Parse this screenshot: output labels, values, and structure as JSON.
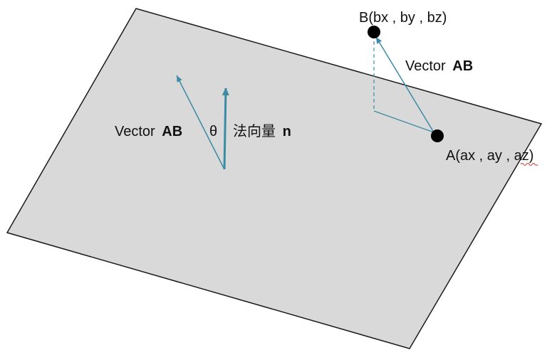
{
  "colors": {
    "plane_fill": "#d9d9d9",
    "plane_stroke": "#1a1a1a",
    "vector": "#3a8ba3",
    "point": "#000000",
    "text": "#111111"
  },
  "labels": {
    "point_b": "B(bx , by , bz)",
    "point_a": "A(ax , ay , az)",
    "vector_ab_prefix": "Vector ",
    "vector_ab_name": "AB",
    "angle": "θ",
    "normal_prefix": "法向量 ",
    "normal_name": "n"
  }
}
